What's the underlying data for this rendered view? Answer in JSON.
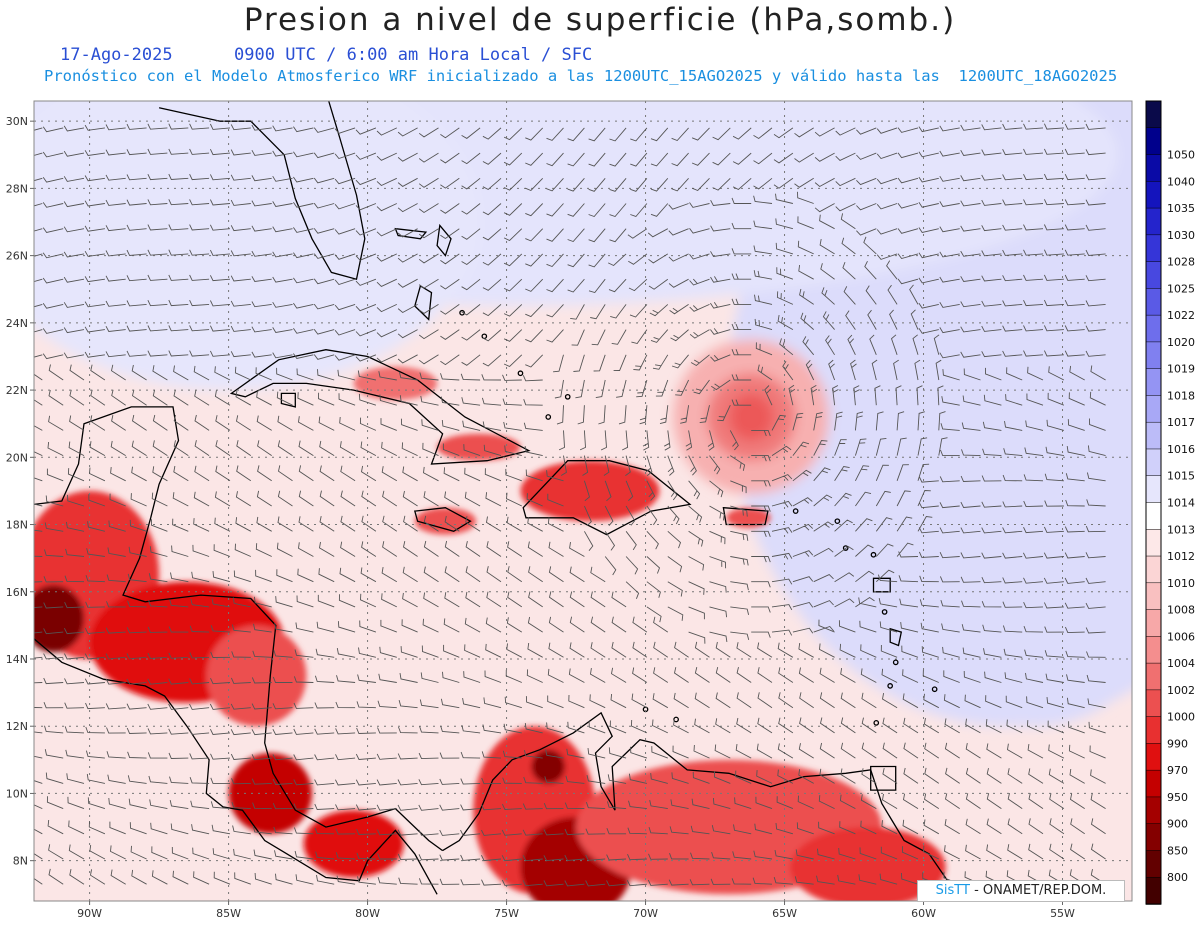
{
  "header": {
    "title": "Presion a nivel de superficie (hPa,somb.)",
    "date": "17-Ago-2025",
    "valid_time": "0900 UTC / 6:00 am Hora Local / SFC",
    "description": "Pronóstico con el Modelo Atmosferico WRF inicializado a las 1200UTC_15AGO2025 y válido hasta las  1200UTC_18AGO2025"
  },
  "map": {
    "lon_range": [
      -92,
      -52.5
    ],
    "lat_range": [
      6.8,
      30.6
    ],
    "lon_ticks": [
      {
        "lon": -90,
        "label": "90W"
      },
      {
        "lon": -85,
        "label": "85W"
      },
      {
        "lon": -80,
        "label": "80W"
      },
      {
        "lon": -75,
        "label": "75W"
      },
      {
        "lon": -70,
        "label": "70W"
      },
      {
        "lon": -65,
        "label": "65W"
      },
      {
        "lon": -60,
        "label": "60W"
      },
      {
        "lon": -55,
        "label": "55W"
      }
    ],
    "lat_ticks": [
      {
        "lat": 30,
        "label": "30N"
      },
      {
        "lat": 28,
        "label": "28N"
      },
      {
        "lat": 26,
        "label": "26N"
      },
      {
        "lat": 24,
        "label": "24N"
      },
      {
        "lat": 22,
        "label": "22N"
      },
      {
        "lat": 20,
        "label": "20N"
      },
      {
        "lat": 18,
        "label": "18N"
      },
      {
        "lat": 16,
        "label": "16N"
      },
      {
        "lat": 14,
        "label": "14N"
      },
      {
        "lat": 12,
        "label": "12N"
      },
      {
        "lat": 10,
        "label": "10N"
      },
      {
        "lat": 8,
        "label": "8N"
      }
    ],
    "background_color": "#fbe6e6",
    "grid": true
  },
  "colorbar": {
    "levels": [
      {
        "label": "",
        "color": "#0a0a4a"
      },
      {
        "label": "1050",
        "color": "#00008c"
      },
      {
        "label": "1040",
        "color": "#0a0aa6"
      },
      {
        "label": "1035",
        "color": "#1414bd"
      },
      {
        "label": "1030",
        "color": "#2424cc"
      },
      {
        "label": "1028",
        "color": "#3535d8"
      },
      {
        "label": "1025",
        "color": "#4848e0"
      },
      {
        "label": "1022",
        "color": "#5a5ae6"
      },
      {
        "label": "1020",
        "color": "#6e6eec"
      },
      {
        "label": "1019",
        "color": "#8080f0"
      },
      {
        "label": "1018",
        "color": "#9494f3"
      },
      {
        "label": "1017",
        "color": "#a8a8f6"
      },
      {
        "label": "1016",
        "color": "#bcbcf8"
      },
      {
        "label": "1015",
        "color": "#d0d0fa"
      },
      {
        "label": "1014",
        "color": "#e6e6fc"
      },
      {
        "label": "1013",
        "color": "#ffffff"
      },
      {
        "label": "1012",
        "color": "#fde8e8"
      },
      {
        "label": "1010",
        "color": "#fbd5d5"
      },
      {
        "label": "1008",
        "color": "#f9c0c0"
      },
      {
        "label": "1006",
        "color": "#f7a8a8"
      },
      {
        "label": "1004",
        "color": "#f48e8e"
      },
      {
        "label": "1002",
        "color": "#f07070"
      },
      {
        "label": "1000",
        "color": "#ec5050"
      },
      {
        "label": "990",
        "color": "#e83030"
      },
      {
        "label": "970",
        "color": "#e01010"
      },
      {
        "label": "950",
        "color": "#c40000"
      },
      {
        "label": "900",
        "color": "#a40000"
      },
      {
        "label": "850",
        "color": "#840000"
      },
      {
        "label": "800",
        "color": "#620000"
      },
      {
        "label": "",
        "color": "#420000"
      }
    ]
  },
  "features": {
    "high_pressure": [
      {
        "name": "",
        "lon": -54.5,
        "lat": 25.5,
        "rx": 7,
        "ry": 5,
        "color": "#b4b4f5"
      },
      {
        "name": "",
        "lon": -56,
        "lat": 24,
        "rx": 9,
        "ry": 8,
        "color": "#cfcff9"
      },
      {
        "name": "",
        "lon": -57,
        "lat": 22,
        "rx": 10,
        "ry": 10,
        "color": "#dcdcfb"
      },
      {
        "name": "",
        "lon": -56,
        "lat": 15.5,
        "rx": 4.5,
        "ry": 3.5,
        "color": "#dcdcfb"
      },
      {
        "name": "",
        "lon": -75,
        "lat": 29,
        "rx": 22,
        "ry": 4.5,
        "color": "#e4e4fc"
      },
      {
        "name": "",
        "lon": -85,
        "lat": 27,
        "rx": 9,
        "ry": 5,
        "color": "#e6e6fc"
      }
    ],
    "low_pressure": [
      {
        "name": "",
        "lon": -66.2,
        "lat": 21.2,
        "rx": 2.8,
        "ry": 2.3,
        "color": "#f7b0b0"
      },
      {
        "name": "",
        "lon": -66.2,
        "lat": 21.2,
        "rx": 1.6,
        "ry": 1.3,
        "color": "#f07a7a"
      },
      {
        "name": "",
        "lon": -66.2,
        "lat": 21.2,
        "rx": 0.8,
        "ry": 0.7,
        "color": "#ec5858"
      }
    ],
    "land_lows": [
      {
        "lon": -90,
        "lat": 16.5,
        "rx": 2.5,
        "ry": 2.5,
        "color": "#e83030"
      },
      {
        "lon": -91.3,
        "lat": 15.2,
        "rx": 1.1,
        "ry": 1.0,
        "color": "#7a0000"
      },
      {
        "lon": -86.5,
        "lat": 14.5,
        "rx": 3.5,
        "ry": 1.8,
        "color": "#e01010"
      },
      {
        "lon": -84,
        "lat": 13.5,
        "rx": 1.8,
        "ry": 1.5,
        "color": "#ec5050"
      },
      {
        "lon": -83.5,
        "lat": 10,
        "rx": 1.5,
        "ry": 1.2,
        "color": "#c40000"
      },
      {
        "lon": -80.5,
        "lat": 8.5,
        "rx": 1.8,
        "ry": 1.0,
        "color": "#e01010"
      },
      {
        "lon": -74,
        "lat": 9.5,
        "rx": 2.2,
        "ry": 2.5,
        "color": "#e83030"
      },
      {
        "lon": -73.5,
        "lat": 10.8,
        "rx": 0.6,
        "ry": 0.5,
        "color": "#840000"
      },
      {
        "lon": -72.5,
        "lat": 7.8,
        "rx": 2,
        "ry": 1.5,
        "color": "#a40000"
      },
      {
        "lon": -67,
        "lat": 9,
        "rx": 5.5,
        "ry": 2,
        "color": "#ec5050"
      },
      {
        "lon": -62,
        "lat": 7.8,
        "rx": 2.8,
        "ry": 1.2,
        "color": "#e83030"
      },
      {
        "lon": -72,
        "lat": 19,
        "rx": 2.5,
        "ry": 0.9,
        "color": "#e83030"
      },
      {
        "lon": -77.2,
        "lat": 18.1,
        "rx": 1.1,
        "ry": 0.4,
        "color": "#ec5050"
      },
      {
        "lon": -66.3,
        "lat": 18.2,
        "rx": 0.8,
        "ry": 0.3,
        "color": "#ec5050"
      },
      {
        "lon": -76,
        "lat": 20.3,
        "rx": 1.5,
        "ry": 0.4,
        "color": "#ec5050"
      },
      {
        "lon": -79,
        "lat": 22.2,
        "rx": 1.5,
        "ry": 0.5,
        "color": "#f07070"
      }
    ]
  },
  "credit": {
    "brand": "SisTT",
    "agency": " - ONAMET/REP.DOM."
  }
}
